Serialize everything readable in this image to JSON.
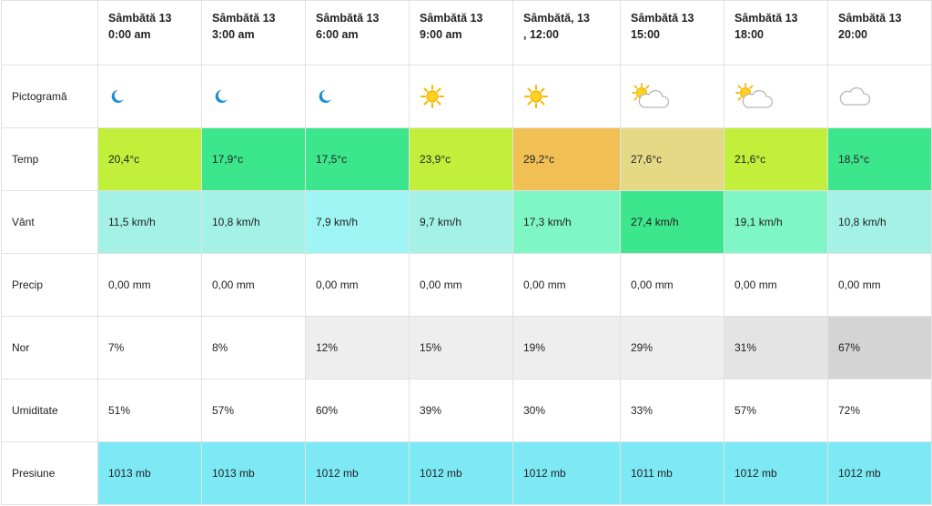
{
  "columns": [
    {
      "day": "Sâmbătă 13",
      "time": "0:00 am"
    },
    {
      "day": "Sâmbătă 13",
      "time": "3:00 am"
    },
    {
      "day": "Sâmbătă 13",
      "time": "6:00 am"
    },
    {
      "day": "Sâmbătă 13",
      "time": "9:00 am"
    },
    {
      "day": "Sâmbătă, 13",
      "time": ", 12:00"
    },
    {
      "day": "Sâmbătă 13",
      "time": "15:00"
    },
    {
      "day": "Sâmbătă 13",
      "time": "18:00"
    },
    {
      "day": "Sâmbătă 13",
      "time": "20:00"
    }
  ],
  "rows": {
    "pictograma": {
      "label": "Pictogramă",
      "icons": [
        "moon-icon",
        "moon-icon",
        "moon-icon",
        "sun-icon",
        "sun-icon",
        "sun-cloud-icon",
        "sun-cloud-icon",
        "cloud-icon"
      ]
    },
    "temp": {
      "label": "Temp",
      "values": [
        "20,4°c",
        "17,9°c",
        "17,5°c",
        "23,9°c",
        "29,2°c",
        "27,6°c",
        "21,6°c",
        "18,5°c"
      ],
      "colors": [
        "#c2ef3a",
        "#3ce68c",
        "#3ce68c",
        "#c2ef3a",
        "#f0c055",
        "#e6d986",
        "#c2ef3a",
        "#3ce68c"
      ]
    },
    "vant": {
      "label": "Vânt",
      "values": [
        "11,5 km/h",
        "10,8 km/h",
        "7,9 km/h",
        "9,7 km/h",
        "17,3 km/h",
        "27,4 km/h",
        "19,1 km/h",
        "10,8 km/h"
      ],
      "colors": [
        "#a4f2e6",
        "#a4f2e6",
        "#9ef5f3",
        "#a4f2e6",
        "#7ff6c6",
        "#3ce68c",
        "#7ff6c6",
        "#a4f2e6"
      ]
    },
    "precip": {
      "label": "Precip",
      "values": [
        "0,00 mm",
        "0,00 mm",
        "0,00 mm",
        "0,00 mm",
        "0,00 mm",
        "0,00 mm",
        "0,00 mm",
        "0,00 mm"
      ],
      "colors": [
        "#ffffff",
        "#ffffff",
        "#ffffff",
        "#ffffff",
        "#ffffff",
        "#ffffff",
        "#ffffff",
        "#ffffff"
      ]
    },
    "nor": {
      "label": "Nor",
      "values": [
        "7%",
        "8%",
        "12%",
        "15%",
        "19%",
        "29%",
        "31%",
        "67%"
      ],
      "colors": [
        "#ffffff",
        "#ffffff",
        "#eeeeee",
        "#eeeeee",
        "#eeeeee",
        "#eeeeee",
        "#e4e4e4",
        "#d4d4d4"
      ]
    },
    "umiditate": {
      "label": "Umiditate",
      "values": [
        "51%",
        "57%",
        "60%",
        "39%",
        "30%",
        "33%",
        "57%",
        "72%"
      ],
      "colors": [
        "#ffffff",
        "#ffffff",
        "#ffffff",
        "#ffffff",
        "#ffffff",
        "#ffffff",
        "#ffffff",
        "#ffffff"
      ]
    },
    "presiune": {
      "label": "Presiune",
      "values": [
        "1013 mb",
        "1013 mb",
        "1012 mb",
        "1012 mb",
        "1012 mb",
        "1011 mb",
        "1012 mb",
        "1012 mb"
      ],
      "colors": [
        "#7ce9f5",
        "#7ce9f5",
        "#7ce9f5",
        "#7ce9f5",
        "#7ce9f5",
        "#7ce9f5",
        "#7ce9f5",
        "#7ce9f5"
      ]
    }
  }
}
